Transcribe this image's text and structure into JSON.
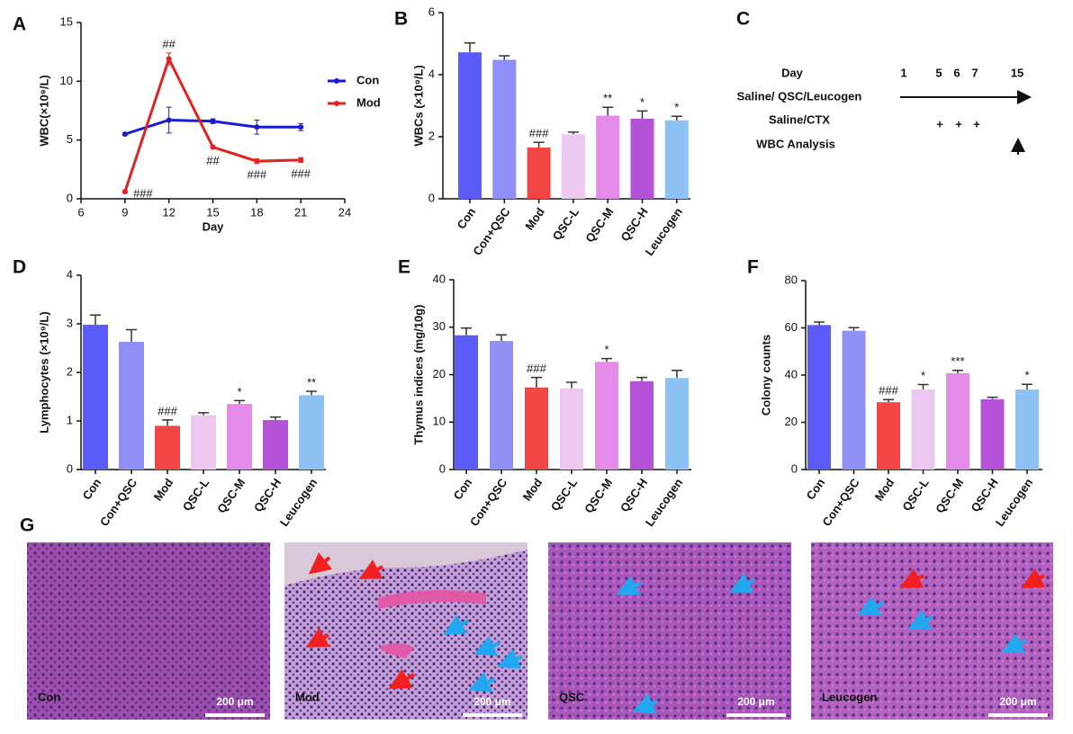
{
  "chart_data": [
    {
      "type": "line",
      "panel_label": "A",
      "x_label": "Day",
      "y_label": "WBC(×10⁹/L)",
      "x": [
        9,
        12,
        15,
        18,
        21
      ],
      "xlim": [
        6,
        24
      ],
      "xticks": [
        6,
        9,
        12,
        15,
        18,
        21,
        24
      ],
      "ylim": [
        0,
        15
      ],
      "yticks": [
        0,
        5,
        10,
        15
      ],
      "series": [
        {
          "name": "Con",
          "color": "#1a1ad6",
          "values": [
            5.5,
            6.7,
            6.6,
            6.1,
            6.1
          ],
          "errors": [
            0.1,
            1.1,
            0.2,
            0.6,
            0.3
          ]
        },
        {
          "name": "Mod",
          "color": "#e02222",
          "values": [
            0.6,
            11.9,
            4.4,
            3.2,
            3.3
          ],
          "errors": [
            0.1,
            0.5,
            0.1,
            0.2,
            0.2
          ],
          "annotations": [
            "###",
            "##",
            "##",
            "###",
            "###"
          ]
        }
      ]
    },
    {
      "type": "bar",
      "panel_label": "B",
      "y_label": "WBCs (×10⁹/L)",
      "categories": [
        "Con",
        "Con+QSC",
        "Mod",
        "QSC-L",
        "QSC-M",
        "QSC-H",
        "Leucogen"
      ],
      "colors": [
        "#5b5bf7",
        "#8f8ff5",
        "#f24545",
        "#ecc8f0",
        "#e48ae8",
        "#b452d8",
        "#8ec2f5"
      ],
      "values": [
        4.72,
        4.48,
        1.65,
        2.08,
        2.68,
        2.58,
        2.53
      ],
      "errors": [
        0.3,
        0.13,
        0.17,
        0.07,
        0.27,
        0.25,
        0.13
      ],
      "annotations": [
        null,
        null,
        "###",
        null,
        "**",
        "*",
        "*"
      ],
      "ylim": [
        0,
        6
      ],
      "yticks": [
        0,
        2,
        4,
        6
      ]
    },
    {
      "type": "bar",
      "panel_label": "D",
      "y_label": "Lymphocytes (×10⁹/L)",
      "categories": [
        "Con",
        "Con+QSC",
        "Mod",
        "QSC-L",
        "QSC-M",
        "QSC-H",
        "Leucogen"
      ],
      "colors": [
        "#5b5bf7",
        "#8f8ff5",
        "#f24545",
        "#ecc8f0",
        "#e48ae8",
        "#b452d8",
        "#8ec2f5"
      ],
      "values": [
        2.98,
        2.63,
        0.9,
        1.12,
        1.35,
        1.02,
        1.53
      ],
      "errors": [
        0.2,
        0.25,
        0.12,
        0.05,
        0.07,
        0.06,
        0.08
      ],
      "annotations": [
        null,
        null,
        "###",
        null,
        "*",
        null,
        "**"
      ],
      "ylim": [
        0,
        4
      ],
      "yticks": [
        0,
        1,
        2,
        3,
        4
      ]
    },
    {
      "type": "bar",
      "panel_label": "E",
      "y_label": "Thymus indices (mg/10g)",
      "categories": [
        "Con",
        "Con+QSC",
        "Mod",
        "QSC-L",
        "QSC-M",
        "QSC-H",
        "Leucogen"
      ],
      "colors": [
        "#5b5bf7",
        "#8f8ff5",
        "#f24545",
        "#ecc8f0",
        "#e48ae8",
        "#b452d8",
        "#8ec2f5"
      ],
      "values": [
        28.3,
        27.1,
        17.3,
        17.1,
        22.7,
        18.6,
        19.3
      ],
      "errors": [
        1.5,
        1.3,
        2.1,
        1.3,
        0.7,
        0.8,
        1.6
      ],
      "annotations": [
        null,
        null,
        "###",
        null,
        "*",
        null,
        null
      ],
      "ylim": [
        0,
        40
      ],
      "yticks": [
        0,
        10,
        20,
        30,
        40
      ]
    },
    {
      "type": "bar",
      "panel_label": "F",
      "y_label": "Colony counts",
      "categories": [
        "Con",
        "Con+QSC",
        "Mod",
        "QSC-L",
        "QSC-M",
        "QSC-H",
        "Leucogen"
      ],
      "colors": [
        "#5b5bf7",
        "#8f8ff5",
        "#f24545",
        "#ecc8f0",
        "#e48ae8",
        "#b452d8",
        "#8ec2f5"
      ],
      "values": [
        61.2,
        58.8,
        28.5,
        33.9,
        40.8,
        29.8,
        33.9
      ],
      "errors": [
        1.3,
        1.3,
        1.1,
        2.1,
        1.2,
        0.8,
        2.2
      ],
      "annotations": [
        null,
        null,
        "###",
        "*",
        "***",
        null,
        "*"
      ],
      "ylim": [
        0,
        80
      ],
      "yticks": [
        0,
        20,
        40,
        60,
        80
      ]
    }
  ],
  "timeline": {
    "panel_label": "C",
    "rows": [
      "Day",
      "Saline/ QSC/Leucogen",
      "Saline/CTX",
      "WBC Analysis"
    ],
    "days": [
      "1",
      "5",
      "6",
      "7",
      "15"
    ],
    "doses": [
      "+",
      "+",
      "+"
    ]
  },
  "histology": {
    "panel_label": "G",
    "images": [
      {
        "label": "Con",
        "scale": "200 μm"
      },
      {
        "label": "Mod",
        "scale": "200 μm"
      },
      {
        "label": "QSC",
        "scale": "200 μm"
      },
      {
        "label": "Leucogen",
        "scale": "200 μm"
      }
    ]
  }
}
